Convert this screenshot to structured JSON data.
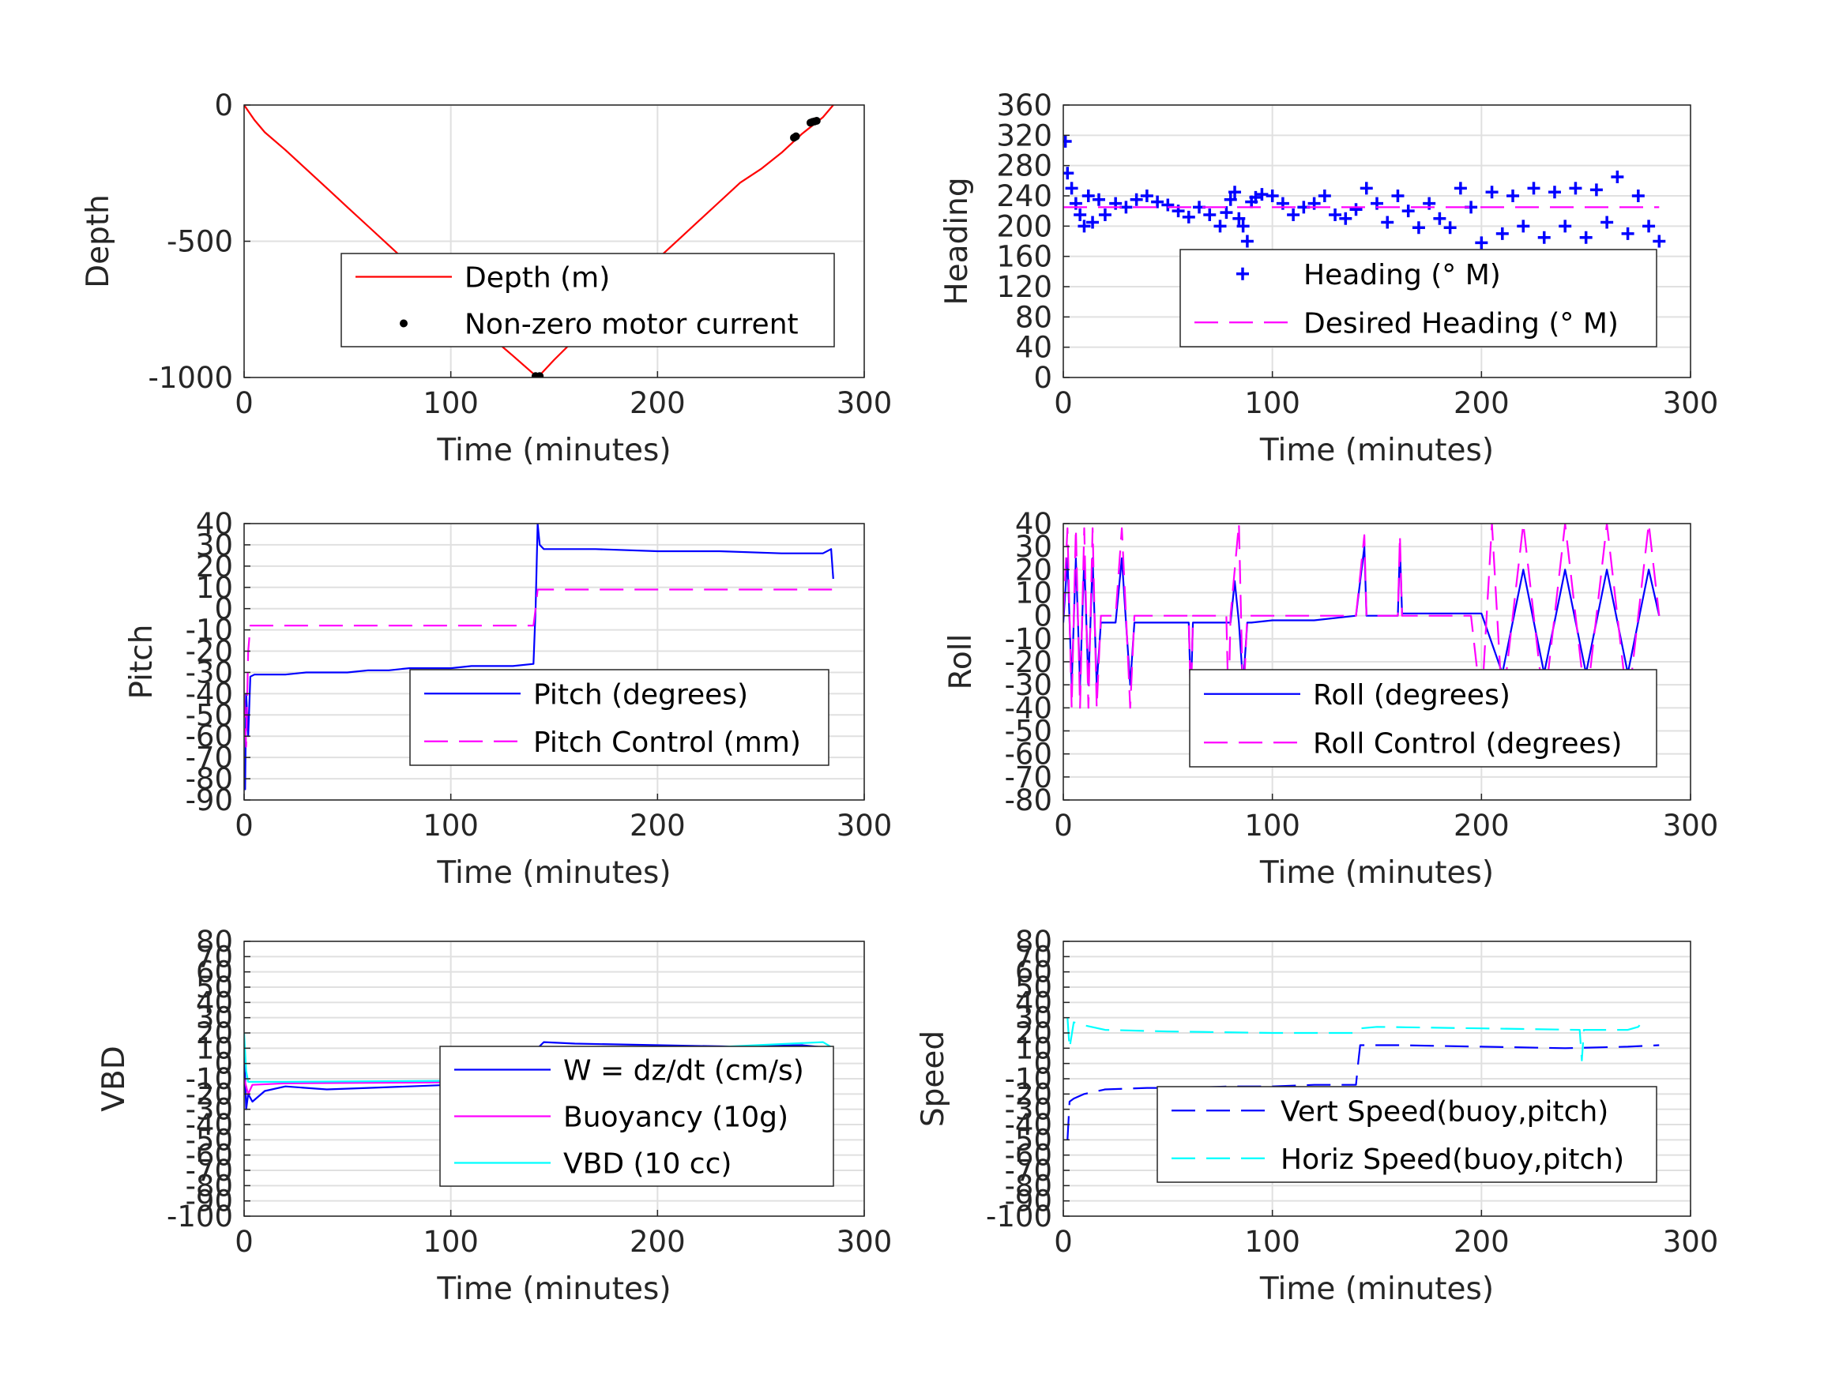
{
  "colors": {
    "depth": "#ff0000",
    "motor": "#000000",
    "blue": "#0000ff",
    "magenta": "#ff00ff",
    "cyan": "#00ffff",
    "grid": "#e0e0e0",
    "axis": "#262626"
  },
  "chart_data": [
    {
      "id": "depth",
      "type": "line",
      "xlabel": "Time (minutes)",
      "ylabel": "Depth",
      "xlim": [
        0,
        300
      ],
      "ylim": [
        -1000,
        0
      ],
      "xticks": [
        0,
        100,
        200,
        300
      ],
      "yticks": [
        -1000,
        -500,
        0
      ],
      "grid": true,
      "legend_position": "lower-right",
      "series": [
        {
          "name": "Depth (m)",
          "style": "line",
          "color": "#ff0000",
          "x": [
            0,
            5,
            10,
            20,
            30,
            40,
            50,
            60,
            70,
            80,
            90,
            100,
            110,
            120,
            130,
            142,
            150,
            160,
            170,
            180,
            190,
            200,
            210,
            220,
            230,
            240,
            250,
            260,
            270,
            280,
            285
          ],
          "y": [
            0,
            -55,
            -100,
            -165,
            -235,
            -305,
            -375,
            -445,
            -515,
            -585,
            -655,
            -725,
            -790,
            -855,
            -920,
            -1000,
            -935,
            -860,
            -790,
            -715,
            -640,
            -565,
            -495,
            -425,
            -355,
            -285,
            -235,
            -175,
            -105,
            -45,
            0
          ]
        },
        {
          "name": "Non-zero motor current",
          "style": "marker",
          "color": "#000000",
          "x": [
            141,
            142,
            143,
            266,
            267,
            274,
            275,
            276,
            277
          ],
          "y": [
            -995,
            -1000,
            -995,
            -120,
            -115,
            -65,
            -62,
            -60,
            -58
          ]
        }
      ]
    },
    {
      "id": "heading",
      "type": "scatter",
      "xlabel": "Time (minutes)",
      "ylabel": "Heading",
      "xlim": [
        0,
        300
      ],
      "ylim": [
        0,
        360
      ],
      "xticks": [
        0,
        100,
        200,
        300
      ],
      "yticks": [
        0,
        40,
        80,
        120,
        160,
        200,
        240,
        280,
        320,
        360
      ],
      "grid": true,
      "legend_position": "lower-right",
      "series": [
        {
          "name": "Heading (° M)",
          "style": "marker-plus",
          "color": "#0000ff",
          "x": [
            1,
            2,
            4,
            6,
            8,
            10,
            12,
            14,
            17,
            20,
            25,
            30,
            35,
            40,
            45,
            50,
            55,
            60,
            65,
            70,
            75,
            78,
            80,
            82,
            84,
            86,
            88,
            90,
            92,
            95,
            100,
            105,
            110,
            115,
            120,
            125,
            130,
            135,
            140,
            145,
            150,
            155,
            160,
            165,
            170,
            175,
            180,
            185,
            190,
            195,
            200,
            205,
            210,
            215,
            220,
            225,
            230,
            235,
            240,
            245,
            250,
            255,
            260,
            265,
            270,
            275,
            280,
            285
          ],
          "y": [
            312,
            270,
            250,
            230,
            215,
            200,
            240,
            205,
            235,
            215,
            230,
            225,
            235,
            240,
            232,
            228,
            220,
            212,
            225,
            215,
            200,
            218,
            235,
            245,
            210,
            200,
            180,
            232,
            238,
            242,
            240,
            230,
            215,
            225,
            230,
            240,
            215,
            210,
            222,
            250,
            230,
            205,
            240,
            220,
            198,
            230,
            210,
            198,
            250,
            225,
            178,
            245,
            190,
            240,
            200,
            250,
            185,
            245,
            200,
            250,
            185,
            248,
            205,
            265,
            190,
            240,
            200,
            180
          ]
        },
        {
          "name": "Desired Heading (° M)",
          "style": "dashed",
          "color": "#ff00ff",
          "x": [
            0,
            285
          ],
          "y": [
            225,
            225
          ]
        }
      ]
    },
    {
      "id": "pitch",
      "type": "line",
      "xlabel": "Time (minutes)",
      "ylabel": "Pitch",
      "xlim": [
        0,
        300
      ],
      "ylim": [
        -90,
        40
      ],
      "xticks": [
        0,
        100,
        200,
        300
      ],
      "yticks": [
        -90,
        -80,
        -70,
        -60,
        -50,
        -40,
        -30,
        -20,
        -10,
        0,
        10,
        20,
        30,
        40
      ],
      "grid": true,
      "legend_position": "lower-right",
      "series": [
        {
          "name": "Pitch (degrees)",
          "style": "line",
          "color": "#0000ff",
          "x": [
            0,
            0.5,
            1,
            2,
            3,
            5,
            10,
            20,
            30,
            40,
            50,
            60,
            70,
            80,
            90,
            100,
            110,
            120,
            130,
            140,
            141,
            142,
            143,
            145,
            150,
            170,
            200,
            230,
            260,
            280,
            284,
            285
          ],
          "y": [
            -80,
            -85,
            -40,
            -60,
            -32,
            -31,
            -31,
            -31,
            -30,
            -30,
            -30,
            -29,
            -29,
            -28,
            -28,
            -28,
            -27,
            -27,
            -27,
            -26,
            0,
            40,
            30,
            28,
            28,
            28,
            27,
            27,
            26,
            26,
            28,
            14
          ]
        },
        {
          "name": "Pitch Control (mm)",
          "style": "dashed",
          "color": "#ff00ff",
          "x": [
            0,
            1,
            2,
            3,
            10,
            50,
            100,
            140,
            141,
            142,
            143,
            160,
            200,
            250,
            285
          ],
          "y": [
            -40,
            -65,
            -20,
            -8,
            -8,
            -8,
            -8,
            -8,
            0,
            9,
            9,
            9,
            9,
            9,
            9
          ]
        }
      ]
    },
    {
      "id": "roll",
      "type": "line",
      "xlabel": "Time (minutes)",
      "ylabel": "Roll",
      "xlim": [
        0,
        300
      ],
      "ylim": [
        -80,
        40
      ],
      "xticks": [
        0,
        100,
        200,
        300
      ],
      "yticks": [
        -80,
        -70,
        -60,
        -50,
        -40,
        -30,
        -20,
        -10,
        0,
        10,
        20,
        30,
        40
      ],
      "grid": true,
      "legend_position": "lower-right",
      "series": [
        {
          "name": "Roll (degrees)",
          "style": "line",
          "color": "#0000ff",
          "x": [
            0,
            2,
            4,
            6,
            8,
            10,
            12,
            14,
            16,
            18,
            25,
            28,
            30,
            32,
            34,
            60,
            61,
            62,
            80,
            82,
            84,
            86,
            88,
            90,
            100,
            120,
            140,
            144,
            145,
            160,
            161,
            162,
            180,
            200,
            210,
            220,
            230,
            240,
            250,
            260,
            270,
            280,
            285
          ],
          "y": [
            -3,
            25,
            -30,
            25,
            -30,
            25,
            -30,
            25,
            -30,
            -3,
            -3,
            25,
            -3,
            -30,
            -3,
            -3,
            -35,
            -3,
            -3,
            15,
            -3,
            -30,
            -3,
            -3,
            -2,
            -2,
            0,
            30,
            0,
            0,
            30,
            1,
            1,
            1,
            -25,
            20,
            -25,
            20,
            -25,
            20,
            -25,
            20,
            0
          ]
        },
        {
          "name": "Roll Control (degrees)",
          "style": "dashed",
          "color": "#ff00ff",
          "x": [
            0,
            2,
            4,
            6,
            8,
            10,
            12,
            14,
            16,
            18,
            25,
            28,
            30,
            32,
            34,
            60,
            61,
            62,
            78,
            79,
            80,
            84,
            85,
            86,
            88,
            90,
            100,
            140,
            144,
            145,
            160,
            161,
            162,
            195,
            200,
            205,
            210,
            220,
            230,
            240,
            250,
            260,
            270,
            280,
            285
          ],
          "y": [
            0,
            38,
            -40,
            38,
            -40,
            38,
            -40,
            38,
            -40,
            0,
            0,
            38,
            0,
            -40,
            0,
            0,
            -40,
            0,
            0,
            -40,
            0,
            40,
            0,
            -40,
            0,
            0,
            0,
            0,
            35,
            0,
            0,
            35,
            0,
            0,
            -40,
            40,
            -40,
            40,
            -40,
            40,
            -40,
            40,
            -40,
            40,
            0
          ]
        }
      ]
    },
    {
      "id": "vbd",
      "type": "line",
      "xlabel": "Time (minutes)",
      "ylabel": "VBD",
      "xlim": [
        0,
        300
      ],
      "ylim": [
        -100,
        80
      ],
      "xticks": [
        0,
        100,
        200,
        300
      ],
      "yticks": [
        -100,
        -90,
        -80,
        -70,
        -60,
        -50,
        -40,
        -30,
        -20,
        -10,
        0,
        10,
        20,
        30,
        40,
        50,
        60,
        70,
        80
      ],
      "grid": true,
      "legend_position": "lower-right",
      "series": [
        {
          "name": "W = dz/dt (cm/s)",
          "style": "line",
          "color": "#0000ff",
          "x": [
            0,
            1,
            2,
            4,
            10,
            20,
            40,
            60,
            80,
            100,
            120,
            140,
            142,
            145,
            160,
            200,
            240,
            270,
            285
          ],
          "y": [
            10,
            -30,
            -20,
            -25,
            -18,
            -15,
            -17,
            -16,
            -15,
            -14,
            -13,
            -13,
            10,
            14,
            13,
            12,
            11,
            12,
            10
          ]
        },
        {
          "name": "Buoyancy (10g)",
          "style": "line",
          "color": "#ff00ff",
          "x": [
            0,
            2,
            4,
            20,
            140,
            142,
            200,
            245,
            246,
            247,
            285
          ],
          "y": [
            -10,
            -20,
            -14,
            -13,
            -12,
            8,
            8,
            8,
            -2,
            8,
            8
          ]
        },
        {
          "name": "VBD (10 cc)",
          "style": "line",
          "color": "#00ffff",
          "x": [
            0,
            1,
            2,
            4,
            20,
            140,
            142,
            200,
            280,
            285
          ],
          "y": [
            20,
            -5,
            -12,
            -12,
            -12,
            -11,
            9,
            9,
            14,
            10
          ]
        }
      ]
    },
    {
      "id": "speed",
      "type": "line",
      "xlabel": "Time (minutes)",
      "ylabel": "Speed",
      "xlim": [
        0,
        300
      ],
      "ylim": [
        -100,
        80
      ],
      "xticks": [
        0,
        100,
        200,
        300
      ],
      "yticks": [
        -100,
        -90,
        -80,
        -70,
        -60,
        -50,
        -40,
        -30,
        -20,
        -10,
        0,
        10,
        20,
        30,
        40,
        50,
        60,
        70,
        80
      ],
      "grid": true,
      "legend_position": "lower-right",
      "series": [
        {
          "name": "Vert Speed(buoy,pitch)",
          "style": "dashed",
          "color": "#0000ff",
          "x": [
            2,
            3,
            5,
            10,
            20,
            40,
            60,
            80,
            100,
            120,
            140,
            141,
            142,
            160,
            200,
            240,
            270,
            285
          ],
          "y": [
            -50,
            -25,
            -23,
            -20,
            -17,
            -16,
            -16,
            -15,
            -15,
            -14,
            -14,
            0,
            12,
            12,
            11,
            10,
            11,
            12
          ]
        },
        {
          "name": "Horiz Speed(buoy,pitch)",
          "style": "dashed",
          "color": "#00ffff",
          "x": [
            2,
            3,
            5,
            10,
            20,
            50,
            100,
            140,
            142,
            150,
            200,
            247,
            248,
            249,
            270,
            275,
            278
          ],
          "y": [
            30,
            10,
            27,
            25,
            22,
            21,
            20,
            20,
            23,
            24,
            23,
            22,
            2,
            22,
            22,
            24,
            29
          ]
        }
      ]
    }
  ]
}
